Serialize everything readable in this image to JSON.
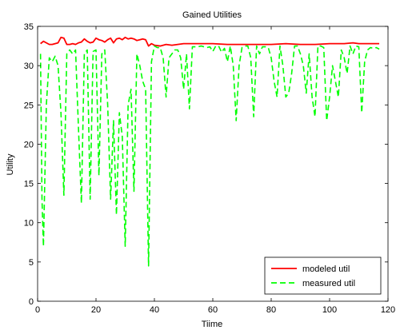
{
  "chart_data": {
    "type": "line",
    "title": "Gained Utilities",
    "xlabel": "Tiime",
    "ylabel": "Utility",
    "xlim": [
      0,
      120
    ],
    "ylim": [
      0,
      35
    ],
    "xticks": [
      0,
      20,
      40,
      60,
      80,
      100,
      120
    ],
    "yticks": [
      0,
      5,
      10,
      15,
      20,
      25,
      30,
      35
    ],
    "grid": false,
    "legend_position": "bottom-right",
    "series": [
      {
        "name": "modeled util",
        "color": "#ff0000",
        "style": "solid",
        "x": [
          1,
          2,
          3,
          4,
          5,
          6,
          7,
          8,
          9,
          10,
          11,
          12,
          13,
          14,
          15,
          16,
          17,
          18,
          19,
          20,
          21,
          22,
          23,
          24,
          25,
          26,
          27,
          28,
          29,
          30,
          31,
          32,
          33,
          34,
          35,
          36,
          37,
          38,
          39,
          40,
          42,
          44,
          46,
          48,
          50,
          55,
          60,
          65,
          70,
          75,
          80,
          85,
          90,
          95,
          100,
          105,
          108,
          110,
          115,
          117
        ],
        "y": [
          32.8,
          33.1,
          32.9,
          32.7,
          32.7,
          32.8,
          32.9,
          33.6,
          33.5,
          32.7,
          32.7,
          32.8,
          32.7,
          32.9,
          33.0,
          33.4,
          33.1,
          32.9,
          33.0,
          33.5,
          33.3,
          33.2,
          33.0,
          33.3,
          33.5,
          32.9,
          33.4,
          33.5,
          33.3,
          33.6,
          33.4,
          33.5,
          33.4,
          33.2,
          33.3,
          33.4,
          33.3,
          32.5,
          32.8,
          32.6,
          32.5,
          32.7,
          32.6,
          32.7,
          32.8,
          32.8,
          32.8,
          32.7,
          32.7,
          32.7,
          32.7,
          32.8,
          32.7,
          32.7,
          32.8,
          32.8,
          32.9,
          32.8,
          32.8,
          32.8
        ]
      },
      {
        "name": "measured util",
        "color": "#00ff00",
        "style": "dashed",
        "x": [
          1,
          1.5,
          2,
          3,
          4,
          5,
          6,
          7,
          8,
          9,
          10,
          11,
          12,
          13,
          14,
          15,
          16,
          17,
          18,
          19,
          20,
          21,
          22,
          23,
          24,
          25,
          26,
          27,
          28,
          29,
          30,
          31,
          32,
          33,
          34,
          35,
          36,
          37,
          38,
          39,
          40,
          41,
          42,
          43,
          44,
          45,
          46,
          47,
          48,
          49,
          50,
          51,
          52,
          53,
          54,
          55,
          56,
          57,
          58,
          59,
          60,
          61,
          62,
          63,
          64,
          65,
          66,
          67,
          68,
          69,
          70,
          71,
          72,
          73,
          74,
          75,
          76,
          77,
          78,
          79,
          80,
          81,
          82,
          83,
          84,
          85,
          86,
          87,
          88,
          89,
          90,
          91,
          92,
          93,
          94,
          95,
          96,
          97,
          98,
          99,
          100,
          101,
          102,
          103,
          104,
          105,
          106,
          107,
          108,
          109,
          110,
          111,
          112,
          113,
          114,
          115,
          116,
          117
        ],
        "y": [
          31.5,
          13,
          7,
          25,
          31,
          30.5,
          31.2,
          30,
          24,
          13.5,
          31.5,
          32,
          31.5,
          32,
          22,
          12.5,
          31.5,
          32,
          13,
          31.8,
          32,
          16,
          31.5,
          32,
          25,
          13,
          23,
          11,
          24,
          21,
          7,
          25,
          27,
          14,
          31.5,
          30,
          28,
          27,
          4.5,
          30.5,
          32.5,
          32.3,
          32.3,
          31,
          26,
          31,
          31.5,
          32,
          32,
          31,
          27,
          31.5,
          24.5,
          32.4,
          32.4,
          32.4,
          32.5,
          32.4,
          32.3,
          32.4,
          31.8,
          32.5,
          32.5,
          31.7,
          32.2,
          30.5,
          32.5,
          30,
          23,
          30,
          32.3,
          32.5,
          32.5,
          31,
          23.5,
          32.5,
          31.5,
          32.4,
          32.4,
          32.3,
          31,
          28,
          26,
          32.5,
          30,
          26,
          26.5,
          29,
          32.5,
          32.5,
          31.5,
          30,
          26.5,
          31.5,
          26,
          23.5,
          32.5,
          32.5,
          32.3,
          23,
          26,
          30,
          28,
          26,
          32,
          31,
          29,
          32.5,
          31.5,
          32.5,
          32.4,
          24,
          30.5,
          32,
          32.3,
          32.2,
          32.3,
          32.1
        ]
      }
    ]
  }
}
